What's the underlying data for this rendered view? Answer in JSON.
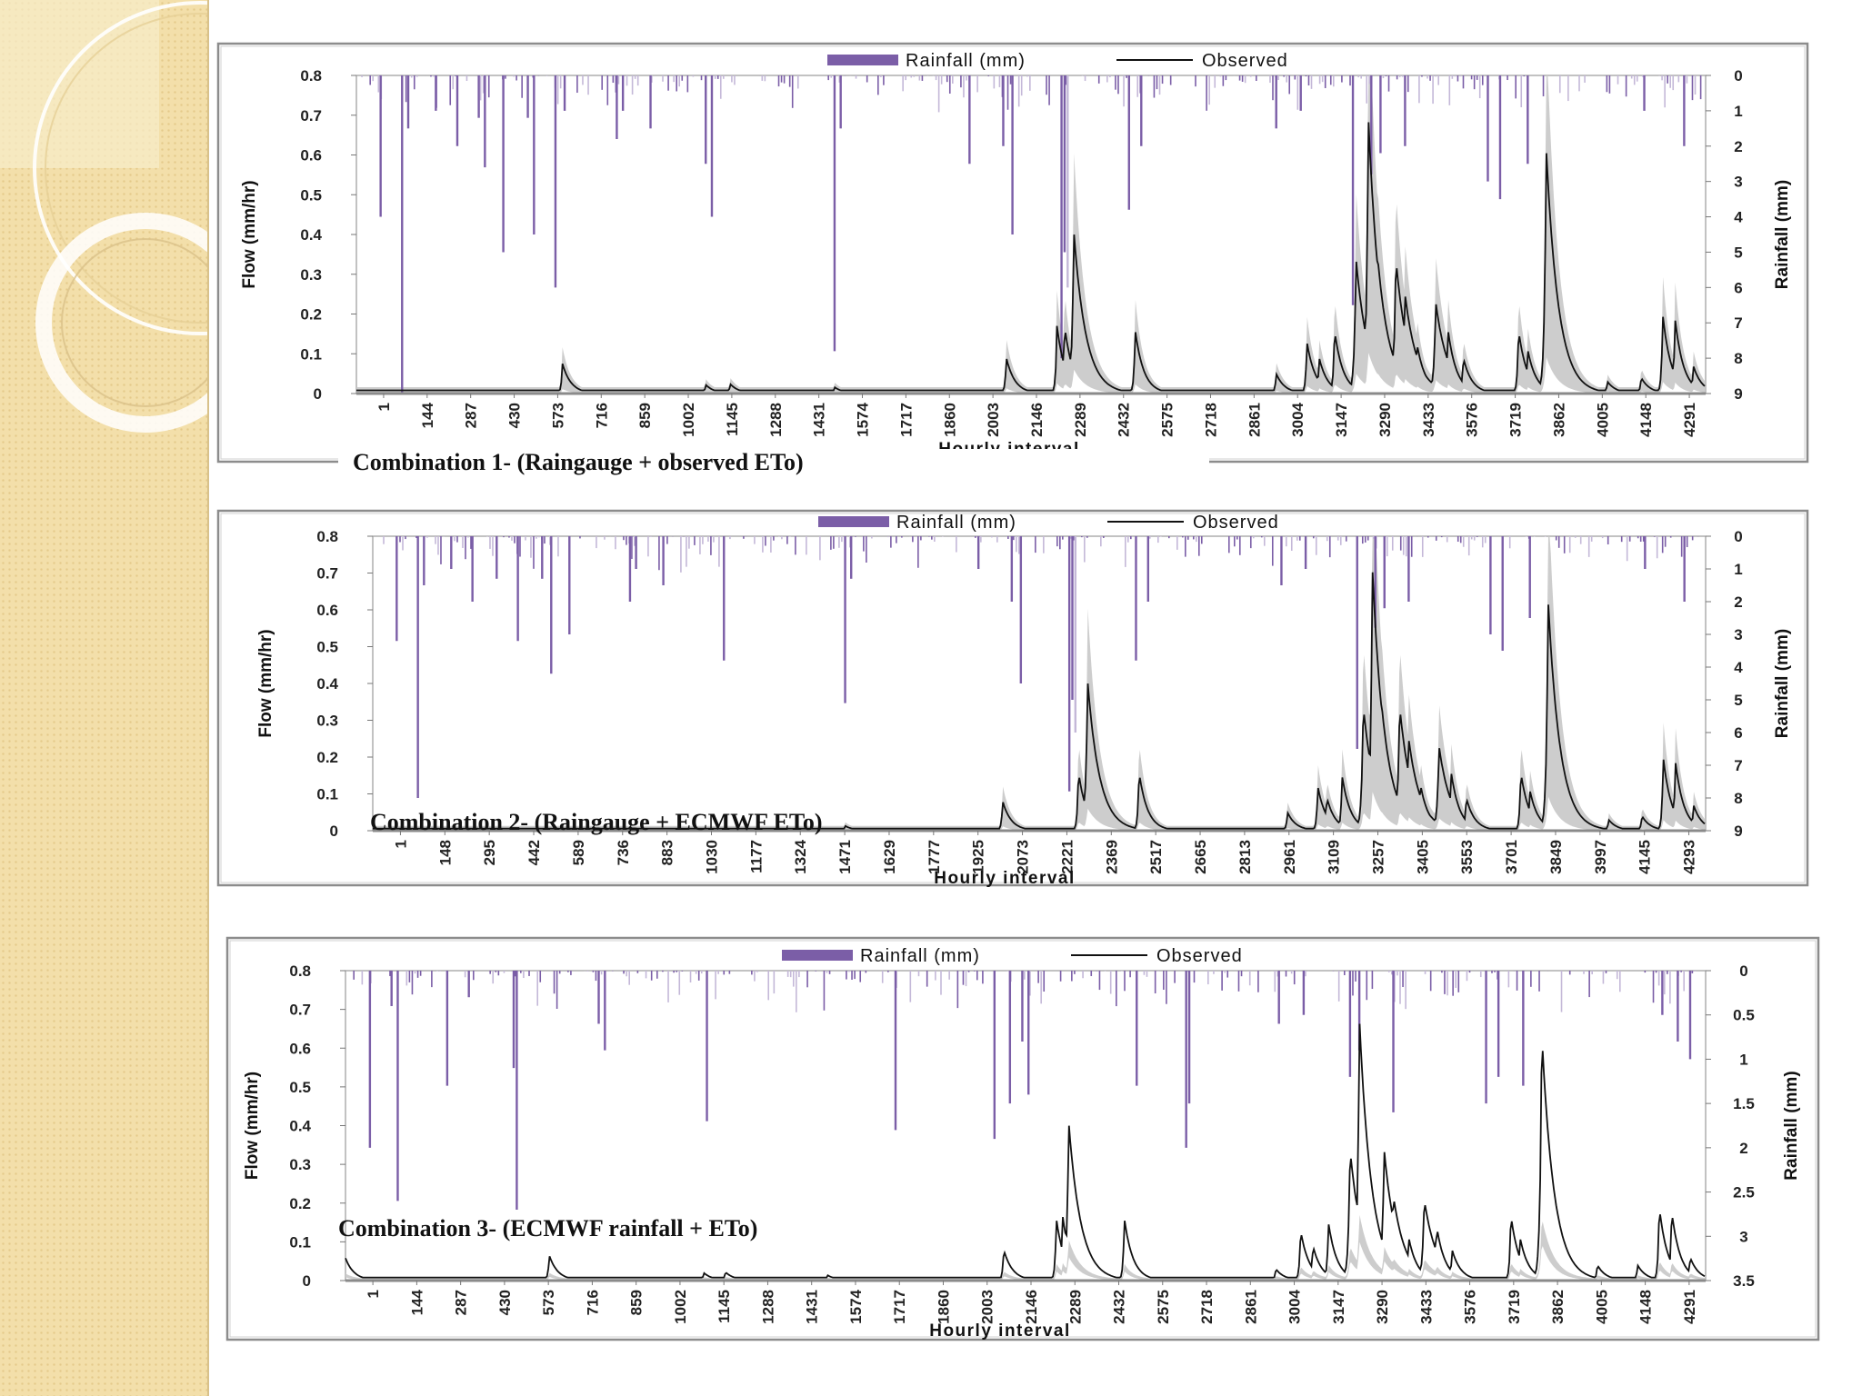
{
  "slide": {
    "sidebar_decoration": "concentric-rings"
  },
  "chart_data": [
    {
      "type": "line",
      "caption": "Combination 1- (Raingauge + observed ETo)",
      "xlabel": "Hourly interval",
      "ylabel": "Flow (mm/hr)",
      "y2label": "Rainfall (mm)",
      "ylim": [
        0,
        0.8
      ],
      "yticks": [
        "0",
        "0.1",
        "0.2",
        "0.3",
        "0.4",
        "0.5",
        "0.6",
        "0.7",
        "0.8"
      ],
      "y2lim": [
        0,
        9
      ],
      "y2ticks": [
        "0",
        "1",
        "2",
        "3",
        "4",
        "5",
        "6",
        "7",
        "8",
        "9"
      ],
      "y2_inverted": true,
      "xlim": [
        1,
        4400
      ],
      "xticks": [
        "1",
        "144",
        "287",
        "430",
        "573",
        "716",
        "859",
        "1002",
        "1145",
        "1288",
        "1431",
        "1574",
        "1717",
        "1860",
        "2003",
        "2146",
        "2289",
        "2432",
        "2575",
        "2718",
        "2861",
        "3004",
        "3147",
        "3290",
        "3433",
        "3576",
        "3719",
        "3862",
        "4005",
        "4148",
        "4291"
      ],
      "legend": [
        "Rainfall (mm)",
        "Observed"
      ],
      "legend_position": "top-center",
      "colors": {
        "rainfall": "#7b5ea7",
        "rainfall_light": "#c4b8d8",
        "observed": "#111111",
        "band": "#c8c8c8"
      },
      "rainfall": [
        [
          80,
          4
        ],
        [
          150,
          9
        ],
        [
          170,
          1.5
        ],
        [
          260,
          1
        ],
        [
          330,
          2
        ],
        [
          400,
          1.2
        ],
        [
          420,
          2.6
        ],
        [
          480,
          5
        ],
        [
          560,
          1.2
        ],
        [
          580,
          4.5
        ],
        [
          650,
          6
        ],
        [
          680,
          1
        ],
        [
          850,
          1.8
        ],
        [
          870,
          1
        ],
        [
          960,
          1.5
        ],
        [
          1140,
          2.5
        ],
        [
          1160,
          4
        ],
        [
          1560,
          7.8
        ],
        [
          1580,
          1.5
        ],
        [
          2000,
          2.5
        ],
        [
          2110,
          2
        ],
        [
          2140,
          4.5
        ],
        [
          2300,
          8
        ],
        [
          2310,
          5
        ],
        [
          2320,
          6
        ],
        [
          2520,
          3.8
        ],
        [
          2560,
          2
        ],
        [
          3000,
          1.5
        ],
        [
          3080,
          1
        ],
        [
          3250,
          6.5
        ],
        [
          3310,
          2.8
        ],
        [
          3340,
          2.2
        ],
        [
          3420,
          2
        ],
        [
          3690,
          3
        ],
        [
          3730,
          3.5
        ],
        [
          3820,
          2.5
        ],
        [
          4200,
          1
        ],
        [
          4330,
          2
        ]
      ],
      "rainfall_noise_max": 1.2,
      "observed_base": 0.008,
      "observed": [
        [
          673,
          0.075
        ],
        [
          1140,
          0.022
        ],
        [
          1220,
          0.024
        ],
        [
          1560,
          0.016
        ],
        [
          2120,
          0.09
        ],
        [
          2285,
          0.17
        ],
        [
          2310,
          0.17
        ],
        [
          2340,
          0.41
        ],
        [
          2540,
          0.16
        ],
        [
          3000,
          0.05
        ],
        [
          3100,
          0.13
        ],
        [
          3140,
          0.09
        ],
        [
          3190,
          0.16
        ],
        [
          3260,
          0.34
        ],
        [
          3300,
          0.7
        ],
        [
          3330,
          0.35
        ],
        [
          3390,
          0.34
        ],
        [
          3420,
          0.25
        ],
        [
          3460,
          0.12
        ],
        [
          3520,
          0.23
        ],
        [
          3560,
          0.16
        ],
        [
          3610,
          0.09
        ],
        [
          3790,
          0.16
        ],
        [
          3820,
          0.11
        ],
        [
          3880,
          0.62
        ],
        [
          3905,
          0.24
        ],
        [
          3950,
          0.1
        ],
        [
          4080,
          0.03
        ],
        [
          4190,
          0.04
        ],
        [
          4260,
          0.2
        ],
        [
          4300,
          0.19
        ],
        [
          4360,
          0.07
        ]
      ],
      "band": true,
      "band_scale": 1.5
    },
    {
      "type": "line",
      "caption": "Combination 2- (Raingauge + ECMWF ETo)",
      "xlabel": "Hourly interval",
      "ylabel": "Flow (mm/hr)",
      "y2label": "Rainfall (mm)",
      "ylim": [
        0,
        0.8
      ],
      "yticks": [
        "0",
        "0.1",
        "0.2",
        "0.3",
        "0.4",
        "0.5",
        "0.6",
        "0.7",
        "0.8"
      ],
      "y2lim": [
        0,
        9
      ],
      "y2ticks": [
        "0",
        "1",
        "2",
        "3",
        "4",
        "5",
        "6",
        "7",
        "8",
        "9"
      ],
      "y2_inverted": true,
      "xlim": [
        1,
        4400
      ],
      "xticks": [
        "1",
        "148",
        "295",
        "442",
        "589",
        "736",
        "883",
        "1030",
        "1177",
        "1324",
        "1471",
        "1629",
        "1777",
        "1925",
        "2073",
        "2221",
        "2369",
        "2517",
        "2665",
        "2813",
        "2961",
        "3109",
        "3257",
        "3405",
        "3553",
        "3701",
        "3849",
        "3997",
        "4145",
        "4293"
      ],
      "legend": [
        "Rainfall (mm)",
        "Observed"
      ],
      "legend_position": "top-center",
      "colors": {
        "rainfall": "#7b5ea7",
        "rainfall_light": "#c4b8d8",
        "observed": "#111111",
        "band": "#c8c8c8"
      },
      "rainfall": [
        [
          80,
          3.2
        ],
        [
          150,
          8
        ],
        [
          170,
          1.5
        ],
        [
          260,
          1
        ],
        [
          330,
          2
        ],
        [
          410,
          1.3
        ],
        [
          480,
          3.2
        ],
        [
          560,
          1.3
        ],
        [
          590,
          4.2
        ],
        [
          650,
          3
        ],
        [
          850,
          2
        ],
        [
          870,
          1
        ],
        [
          960,
          1.5
        ],
        [
          1160,
          3.8
        ],
        [
          1560,
          5.1
        ],
        [
          1580,
          1.3
        ],
        [
          2000,
          1
        ],
        [
          2110,
          2
        ],
        [
          2140,
          4.5
        ],
        [
          2300,
          7.8
        ],
        [
          2310,
          5
        ],
        [
          2320,
          6
        ],
        [
          2520,
          3.8
        ],
        [
          2560,
          2
        ],
        [
          3000,
          1.5
        ],
        [
          3080,
          1
        ],
        [
          3250,
          6.5
        ],
        [
          3310,
          2.8
        ],
        [
          3340,
          2.2
        ],
        [
          3420,
          2
        ],
        [
          3690,
          3
        ],
        [
          3730,
          3.5
        ],
        [
          3820,
          2.5
        ],
        [
          4200,
          1
        ],
        [
          4330,
          2
        ]
      ],
      "rainfall_noise_max": 1.2,
      "observed_base": 0.006,
      "observed": [
        [
          1560,
          0.013
        ],
        [
          2080,
          0.08
        ],
        [
          2330,
          0.16
        ],
        [
          2360,
          0.41
        ],
        [
          2530,
          0.16
        ],
        [
          3020,
          0.05
        ],
        [
          3120,
          0.12
        ],
        [
          3150,
          0.09
        ],
        [
          3200,
          0.15
        ],
        [
          3270,
          0.34
        ],
        [
          3300,
          0.72
        ],
        [
          3330,
          0.35
        ],
        [
          3390,
          0.34
        ],
        [
          3420,
          0.25
        ],
        [
          3460,
          0.12
        ],
        [
          3520,
          0.23
        ],
        [
          3560,
          0.16
        ],
        [
          3610,
          0.09
        ],
        [
          3790,
          0.16
        ],
        [
          3820,
          0.11
        ],
        [
          3880,
          0.63
        ],
        [
          3905,
          0.24
        ],
        [
          3950,
          0.1
        ],
        [
          4080,
          0.03
        ],
        [
          4190,
          0.04
        ],
        [
          4260,
          0.2
        ],
        [
          4300,
          0.19
        ],
        [
          4360,
          0.07
        ]
      ],
      "band": true,
      "band_scale": 1.5,
      "caption_inside": true
    },
    {
      "type": "line",
      "caption": "Combination 3- (ECMWF rainfall + ETo)",
      "xlabel": "Hourly interval",
      "ylabel": "Flow (mm/hr)",
      "y2label": "Rainfall (mm)",
      "ylim": [
        0,
        0.8
      ],
      "yticks": [
        "0",
        "0.1",
        "0.2",
        "0.3",
        "0.4",
        "0.5",
        "0.6",
        "0.7",
        "0.8"
      ],
      "y2lim": [
        0,
        3.5
      ],
      "y2ticks": [
        "0",
        "0.5",
        "1",
        "1.5",
        "2",
        "2.5",
        "3",
        "3.5"
      ],
      "y2_inverted": true,
      "xlim": [
        1,
        4400
      ],
      "xticks": [
        "1",
        "144",
        "287",
        "430",
        "573",
        "716",
        "859",
        "1002",
        "1145",
        "1288",
        "1431",
        "1574",
        "1717",
        "1860",
        "2003",
        "2146",
        "2289",
        "2432",
        "2575",
        "2718",
        "2861",
        "3004",
        "3147",
        "3290",
        "3433",
        "3576",
        "3719",
        "3862",
        "4005",
        "4148",
        "4291"
      ],
      "legend": [
        "Rainfall (mm)",
        "Observed"
      ],
      "legend_position": "top-center",
      "colors": {
        "rainfall": "#7b5ea7",
        "rainfall_light": "#c4b8d8",
        "observed": "#111111",
        "band": "#c8c8c8"
      },
      "rainfall": [
        [
          80,
          2
        ],
        [
          150,
          0.4
        ],
        [
          170,
          2.6
        ],
        [
          330,
          1.3
        ],
        [
          400,
          0.3
        ],
        [
          545,
          1.1
        ],
        [
          555,
          2.7
        ],
        [
          820,
          0.6
        ],
        [
          840,
          0.9
        ],
        [
          1170,
          1.7
        ],
        [
          1780,
          1.8
        ],
        [
          2100,
          1.9
        ],
        [
          2150,
          1.5
        ],
        [
          2190,
          0.8
        ],
        [
          2210,
          1.4
        ],
        [
          2560,
          1.3
        ],
        [
          2720,
          2
        ],
        [
          2730,
          1.5
        ],
        [
          3020,
          0.6
        ],
        [
          3100,
          0.5
        ],
        [
          3250,
          1.2
        ],
        [
          3280,
          0.9
        ],
        [
          3390,
          1.6
        ],
        [
          3690,
          1.5
        ],
        [
          3730,
          1.2
        ],
        [
          3810,
          1.3
        ],
        [
          4260,
          0.5
        ],
        [
          4310,
          0.8
        ],
        [
          4350,
          1
        ]
      ],
      "rainfall_noise_max": 0.5,
      "observed_base": 0.008,
      "observed": [
        [
          0,
          0.06
        ],
        [
          660,
          0.065
        ],
        [
          1160,
          0.02
        ],
        [
          1230,
          0.022
        ],
        [
          1560,
          0.014
        ],
        [
          2130,
          0.08
        ],
        [
          2300,
          0.16
        ],
        [
          2320,
          0.17
        ],
        [
          2340,
          0.41
        ],
        [
          2520,
          0.16
        ],
        [
          3010,
          0.03
        ],
        [
          3090,
          0.13
        ],
        [
          3130,
          0.09
        ],
        [
          3180,
          0.15
        ],
        [
          3250,
          0.34
        ],
        [
          3280,
          0.68
        ],
        [
          3310,
          0.3
        ],
        [
          3360,
          0.34
        ],
        [
          3390,
          0.22
        ],
        [
          3440,
          0.11
        ],
        [
          3490,
          0.21
        ],
        [
          3530,
          0.14
        ],
        [
          3580,
          0.08
        ],
        [
          3770,
          0.17
        ],
        [
          3800,
          0.11
        ],
        [
          3870,
          0.64
        ],
        [
          3895,
          0.22
        ],
        [
          3940,
          0.08
        ],
        [
          4050,
          0.04
        ],
        [
          4180,
          0.04
        ],
        [
          4250,
          0.19
        ],
        [
          4290,
          0.18
        ],
        [
          4350,
          0.06
        ]
      ],
      "band": true,
      "band_scale": 0.25,
      "caption_inside": true
    }
  ]
}
